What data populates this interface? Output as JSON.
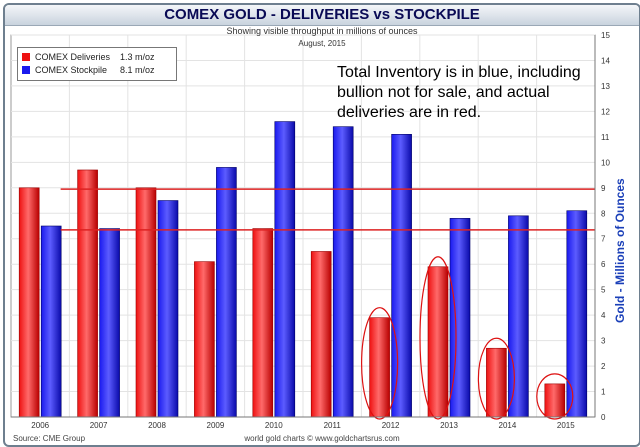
{
  "chart_data": {
    "type": "bar",
    "title": "COMEX GOLD - DELIVERIES vs STOCKPILE",
    "subtitle": "Showing visible throughput in millions of ounces",
    "period": "August, 2015",
    "categories": [
      "2006",
      "2007",
      "2008",
      "2009",
      "2010",
      "2011",
      "2012",
      "2013",
      "2014",
      "2015"
    ],
    "series": [
      {
        "name": "COMEX Deliveries",
        "legend_value": "1.3 m/oz",
        "color": "#ee1111",
        "values": [
          9.0,
          9.7,
          9.0,
          6.1,
          7.4,
          6.5,
          3.9,
          5.9,
          2.7,
          1.3
        ]
      },
      {
        "name": "COMEX Stockpile",
        "legend_value": "8.1 m/oz",
        "color": "#1a1aee",
        "values": [
          7.5,
          7.4,
          8.5,
          9.8,
          11.6,
          11.4,
          11.1,
          7.8,
          7.9,
          8.1
        ]
      }
    ],
    "ylabel": "Gold - Millions of Ounces",
    "ylim": [
      0,
      15
    ],
    "yticks": [
      0,
      1,
      2,
      3,
      4,
      5,
      6,
      7,
      8,
      9,
      10,
      11,
      12,
      13,
      14,
      15
    ],
    "reference_lines": [
      8.95,
      7.35
    ],
    "reference_line_color": "#dd2222",
    "highlighted_categories": [
      "2012",
      "2013",
      "2014",
      "2015"
    ],
    "annotation": "Total Inventory is in blue, including bullion not for sale, and actual deliveries are in red.",
    "grid": true,
    "legend_position": "top-left"
  },
  "footer": {
    "source": "Source: CME Group",
    "credit": "world gold charts © www.goldchartsrus.com"
  }
}
